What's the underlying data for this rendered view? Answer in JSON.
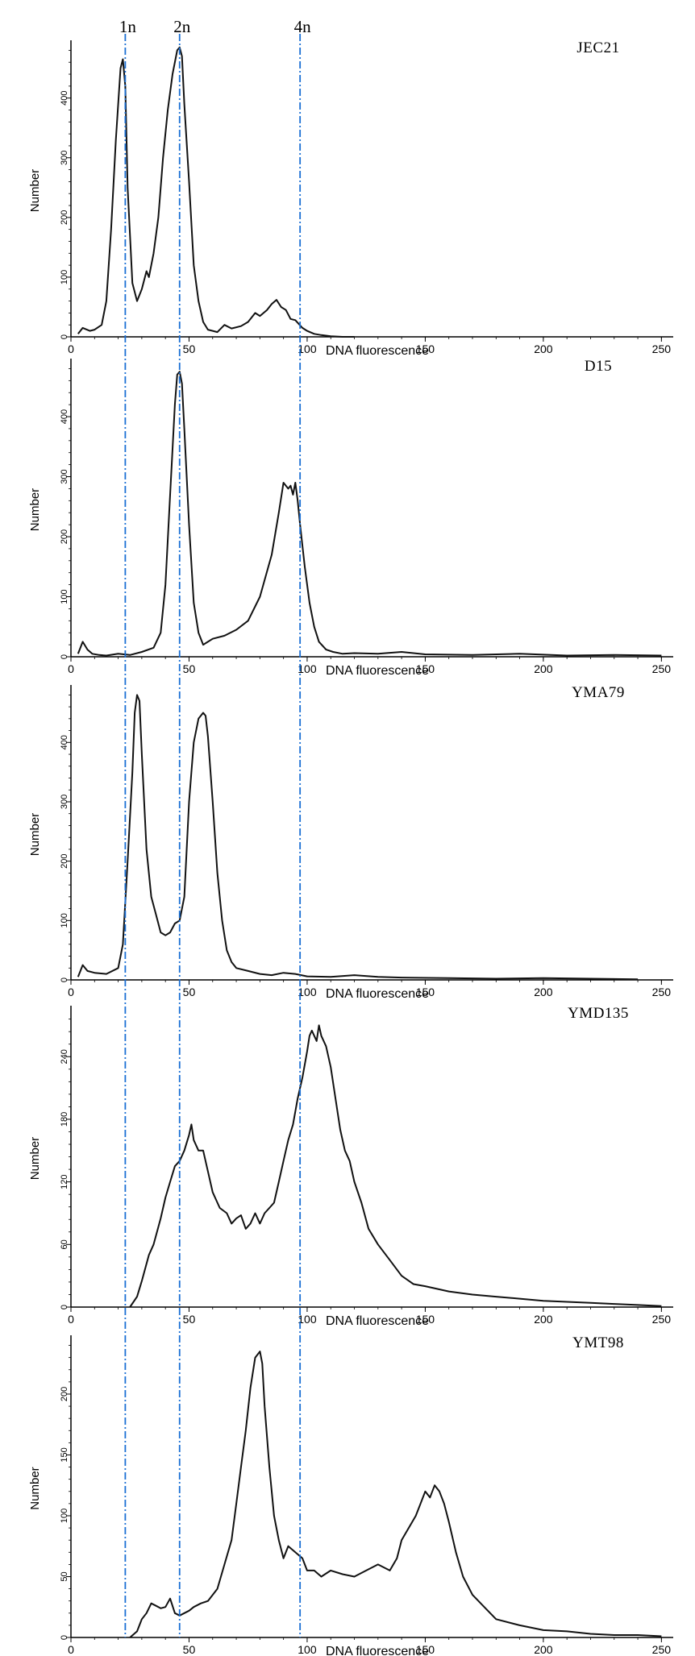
{
  "chart_data": {
    "type": "line",
    "reference_lines": [
      {
        "label": "1n",
        "x": 23,
        "color": "#1a6fd4",
        "style": "dash-dot"
      },
      {
        "label": "2n",
        "x": 46,
        "color": "#1a6fd4",
        "style": "dash-dot"
      },
      {
        "label": "4n",
        "x": 97,
        "color": "#1a6fd4",
        "style": "dash-dot"
      }
    ],
    "line_color": "#111111",
    "panels": [
      {
        "title": "JEC21",
        "xlabel": "DNA fluorescence",
        "ylabel": "Number",
        "xlim": [
          0,
          255
        ],
        "ylim": [
          0,
          490
        ],
        "xticks": [
          0,
          50,
          100,
          150,
          200,
          250
        ],
        "xtick_labels": [
          "0",
          "50",
          "100",
          "150",
          "200",
          "250"
        ],
        "yticks": [
          0,
          100,
          200,
          300,
          400
        ],
        "ytick_labels": [
          "0",
          "100",
          "200",
          "300",
          "400"
        ],
        "x": [
          3,
          5,
          8,
          10,
          13,
          15,
          17,
          19,
          21,
          22,
          23,
          24,
          26,
          28,
          30,
          32,
          33,
          35,
          37,
          39,
          41,
          43,
          45,
          46,
          47,
          48,
          50,
          52,
          54,
          56,
          58,
          60,
          62,
          65,
          68,
          72,
          75,
          78,
          80,
          83,
          85,
          87,
          89,
          91,
          93,
          95,
          98,
          100,
          103,
          106,
          110,
          115,
          120
        ],
        "y": [
          5,
          15,
          10,
          12,
          20,
          60,
          180,
          330,
          450,
          465,
          420,
          250,
          90,
          60,
          80,
          110,
          100,
          140,
          200,
          300,
          380,
          440,
          480,
          485,
          470,
          390,
          260,
          120,
          60,
          25,
          12,
          10,
          8,
          20,
          14,
          18,
          25,
          40,
          35,
          45,
          55,
          62,
          50,
          45,
          30,
          28,
          15,
          10,
          5,
          3,
          1,
          0,
          0
        ]
      },
      {
        "title": "D15",
        "xlabel": "DNA fluorescence",
        "ylabel": "Number",
        "xlim": [
          0,
          255
        ],
        "ylim": [
          0,
          490
        ],
        "xticks": [
          0,
          50,
          100,
          150,
          200,
          250
        ],
        "xtick_labels": [
          "0",
          "50",
          "100",
          "150",
          "200",
          "250"
        ],
        "yticks": [
          0,
          100,
          200,
          300,
          400
        ],
        "ytick_labels": [
          "0",
          "100",
          "200",
          "300",
          "400"
        ],
        "x": [
          3,
          5,
          7,
          9,
          12,
          15,
          20,
          25,
          30,
          35,
          38,
          40,
          42,
          44,
          45,
          46,
          47,
          48,
          50,
          52,
          54,
          56,
          58,
          60,
          65,
          70,
          75,
          80,
          85,
          88,
          90,
          92,
          93,
          94,
          95,
          96,
          97,
          99,
          101,
          103,
          105,
          108,
          111,
          115,
          120,
          130,
          140,
          150,
          170,
          190,
          210,
          230,
          250
        ],
        "y": [
          5,
          25,
          12,
          5,
          3,
          2,
          5,
          3,
          8,
          15,
          40,
          120,
          270,
          420,
          470,
          475,
          455,
          380,
          220,
          90,
          40,
          20,
          25,
          30,
          35,
          45,
          60,
          100,
          170,
          240,
          290,
          280,
          285,
          270,
          290,
          260,
          220,
          150,
          90,
          50,
          25,
          12,
          8,
          5,
          6,
          5,
          8,
          4,
          3,
          5,
          2,
          3,
          2
        ]
      },
      {
        "title": "YMA79",
        "xlabel": "DNA fluorescence",
        "ylabel": "Number",
        "xlim": [
          0,
          255
        ],
        "ylim": [
          0,
          490
        ],
        "xticks": [
          0,
          50,
          100,
          150,
          200,
          250
        ],
        "xtick_labels": [
          "0",
          "50",
          "100",
          "150",
          "200",
          "250"
        ],
        "yticks": [
          0,
          100,
          200,
          300,
          400
        ],
        "ytick_labels": [
          "0",
          "100",
          "200",
          "300",
          "400"
        ],
        "x": [
          3,
          5,
          7,
          10,
          15,
          20,
          22,
          24,
          26,
          27,
          28,
          29,
          30,
          32,
          34,
          36,
          38,
          40,
          42,
          44,
          46,
          48,
          50,
          52,
          54,
          56,
          57,
          58,
          60,
          62,
          64,
          66,
          68,
          70,
          75,
          80,
          85,
          90,
          95,
          100,
          110,
          120,
          130,
          140,
          160,
          180,
          200,
          220,
          240
        ],
        "y": [
          5,
          25,
          15,
          12,
          10,
          20,
          60,
          200,
          350,
          450,
          480,
          470,
          380,
          220,
          140,
          110,
          80,
          75,
          80,
          95,
          100,
          140,
          300,
          400,
          440,
          450,
          445,
          410,
          300,
          180,
          100,
          50,
          30,
          20,
          15,
          10,
          8,
          12,
          10,
          6,
          5,
          8,
          5,
          4,
          3,
          2,
          3,
          2,
          1
        ]
      },
      {
        "title": "YMD135",
        "xlabel": "DNA fluorescence",
        "ylabel": "Number",
        "xlim": [
          0,
          255
        ],
        "ylim": [
          0,
          285
        ],
        "xticks": [
          0,
          50,
          100,
          150,
          200,
          250
        ],
        "xtick_labels": [
          "0",
          "50",
          "100",
          "150",
          "200",
          "250"
        ],
        "yticks": [
          0,
          60,
          120,
          180,
          240
        ],
        "ytick_labels": [
          "0",
          "60",
          "120",
          "180",
          "240"
        ],
        "x": [
          25,
          28,
          30,
          33,
          35,
          38,
          40,
          42,
          44,
          46,
          48,
          50,
          51,
          52,
          54,
          56,
          58,
          60,
          63,
          66,
          68,
          70,
          72,
          74,
          76,
          78,
          80,
          82,
          84,
          86,
          88,
          90,
          92,
          94,
          96,
          98,
          100,
          101,
          102,
          104,
          105,
          106,
          108,
          110,
          112,
          114,
          116,
          118,
          120,
          123,
          126,
          130,
          135,
          140,
          145,
          150,
          160,
          170,
          180,
          190,
          200,
          210,
          220,
          230,
          240,
          250
        ],
        "y": [
          0,
          10,
          25,
          50,
          60,
          85,
          105,
          120,
          135,
          140,
          150,
          165,
          175,
          160,
          150,
          150,
          130,
          110,
          95,
          90,
          80,
          85,
          88,
          75,
          80,
          90,
          80,
          90,
          95,
          100,
          120,
          140,
          160,
          175,
          200,
          220,
          245,
          260,
          265,
          255,
          270,
          260,
          250,
          230,
          200,
          170,
          150,
          140,
          120,
          100,
          75,
          60,
          45,
          30,
          22,
          20,
          15,
          12,
          10,
          8,
          6,
          5,
          4,
          3,
          2,
          1
        ]
      },
      {
        "title": "YMT98",
        "xlabel": "DNA fluorescence",
        "ylabel": "Number",
        "xlim": [
          0,
          255
        ],
        "ylim": [
          0,
          245
        ],
        "xticks": [
          0,
          50,
          100,
          150,
          200,
          250
        ],
        "xtick_labels": [
          "0",
          "50",
          "100",
          "150",
          "200",
          "250"
        ],
        "yticks": [
          0,
          50,
          100,
          150,
          200
        ],
        "ytick_labels": [
          "0",
          "50",
          "100",
          "150",
          "200"
        ],
        "x": [
          25,
          28,
          30,
          32,
          34,
          36,
          38,
          40,
          42,
          44,
          46,
          48,
          50,
          52,
          55,
          58,
          60,
          62,
          65,
          68,
          70,
          72,
          74,
          76,
          78,
          80,
          81,
          82,
          84,
          86,
          88,
          90,
          92,
          95,
          98,
          100,
          103,
          106,
          110,
          115,
          120,
          125,
          130,
          135,
          138,
          140,
          143,
          146,
          148,
          150,
          152,
          154,
          156,
          158,
          160,
          163,
          166,
          170,
          175,
          180,
          190,
          200,
          210,
          220,
          230,
          240,
          250
        ],
        "y": [
          0,
          5,
          15,
          20,
          28,
          26,
          24,
          25,
          32,
          20,
          18,
          20,
          22,
          25,
          28,
          30,
          35,
          40,
          60,
          80,
          110,
          140,
          170,
          205,
          230,
          235,
          225,
          190,
          140,
          100,
          80,
          65,
          75,
          70,
          65,
          55,
          55,
          50,
          55,
          52,
          50,
          55,
          60,
          55,
          65,
          80,
          90,
          100,
          110,
          120,
          115,
          125,
          120,
          110,
          95,
          70,
          50,
          35,
          25,
          15,
          10,
          6,
          5,
          3,
          2,
          2,
          1
        ]
      }
    ]
  }
}
